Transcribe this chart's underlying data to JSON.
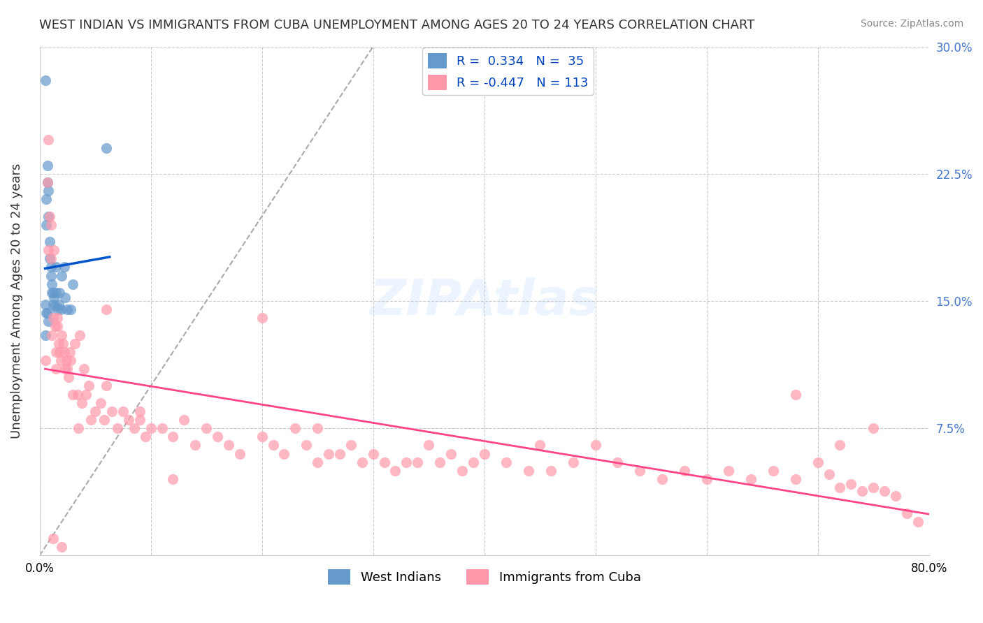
{
  "title": "WEST INDIAN VS IMMIGRANTS FROM CUBA UNEMPLOYMENT AMONG AGES 20 TO 24 YEARS CORRELATION CHART",
  "source": "Source: ZipAtlas.com",
  "ylabel": "Unemployment Among Ages 20 to 24 years",
  "xlabel": "",
  "xlim": [
    0,
    0.8
  ],
  "ylim": [
    0,
    0.3
  ],
  "xticks": [
    0.0,
    0.1,
    0.2,
    0.3,
    0.4,
    0.5,
    0.6,
    0.7,
    0.8
  ],
  "yticks": [
    0.0,
    0.075,
    0.15,
    0.225,
    0.3
  ],
  "ytick_labels": [
    "",
    "7.5%",
    "15.0%",
    "22.5%",
    "30.0%"
  ],
  "xtick_labels": [
    "0.0%",
    "",
    "",
    "",
    "",
    "",
    "",
    "",
    "80.0%"
  ],
  "legend_r1": "R =  0.334",
  "legend_n1": "N =  35",
  "legend_r2": "R = -0.447",
  "legend_n2": "N = 113",
  "blue_color": "#6699CC",
  "pink_color": "#FF99AA",
  "trend_blue": "#0055CC",
  "trend_pink": "#FF4488",
  "background": "#FFFFFF",
  "grid_color": "#CCCCCC",
  "west_indian_x": [
    0.005,
    0.005,
    0.006,
    0.006,
    0.007,
    0.007,
    0.008,
    0.008,
    0.009,
    0.009,
    0.01,
    0.01,
    0.011,
    0.011,
    0.012,
    0.012,
    0.013,
    0.014,
    0.015,
    0.015,
    0.016,
    0.017,
    0.018,
    0.019,
    0.02,
    0.022,
    0.023,
    0.025,
    0.028,
    0.03,
    0.005,
    0.006,
    0.007,
    0.008,
    0.06
  ],
  "west_indian_y": [
    0.28,
    0.13,
    0.21,
    0.195,
    0.22,
    0.23,
    0.215,
    0.2,
    0.185,
    0.175,
    0.17,
    0.165,
    0.16,
    0.155,
    0.155,
    0.148,
    0.152,
    0.147,
    0.17,
    0.155,
    0.145,
    0.148,
    0.155,
    0.145,
    0.165,
    0.17,
    0.152,
    0.145,
    0.145,
    0.16,
    0.148,
    0.143,
    0.143,
    0.138,
    0.24
  ],
  "cuba_x": [
    0.005,
    0.007,
    0.008,
    0.009,
    0.01,
    0.01,
    0.011,
    0.012,
    0.013,
    0.014,
    0.015,
    0.015,
    0.016,
    0.016,
    0.017,
    0.018,
    0.019,
    0.02,
    0.021,
    0.022,
    0.023,
    0.024,
    0.025,
    0.026,
    0.027,
    0.028,
    0.03,
    0.032,
    0.034,
    0.036,
    0.038,
    0.04,
    0.042,
    0.044,
    0.046,
    0.05,
    0.055,
    0.058,
    0.06,
    0.065,
    0.07,
    0.075,
    0.08,
    0.085,
    0.09,
    0.095,
    0.1,
    0.11,
    0.12,
    0.13,
    0.14,
    0.15,
    0.16,
    0.17,
    0.18,
    0.2,
    0.21,
    0.22,
    0.23,
    0.24,
    0.25,
    0.26,
    0.27,
    0.28,
    0.29,
    0.3,
    0.31,
    0.32,
    0.33,
    0.34,
    0.35,
    0.36,
    0.37,
    0.38,
    0.39,
    0.4,
    0.42,
    0.44,
    0.46,
    0.48,
    0.5,
    0.52,
    0.54,
    0.56,
    0.58,
    0.6,
    0.62,
    0.64,
    0.66,
    0.68,
    0.7,
    0.71,
    0.72,
    0.73,
    0.74,
    0.75,
    0.76,
    0.77,
    0.78,
    0.79,
    0.008,
    0.012,
    0.02,
    0.035,
    0.06,
    0.09,
    0.12,
    0.2,
    0.25,
    0.45,
    0.68,
    0.72,
    0.75
  ],
  "cuba_y": [
    0.115,
    0.22,
    0.18,
    0.2,
    0.175,
    0.195,
    0.13,
    0.14,
    0.18,
    0.135,
    0.12,
    0.11,
    0.14,
    0.135,
    0.125,
    0.12,
    0.115,
    0.13,
    0.125,
    0.12,
    0.11,
    0.115,
    0.11,
    0.105,
    0.12,
    0.115,
    0.095,
    0.125,
    0.095,
    0.13,
    0.09,
    0.11,
    0.095,
    0.1,
    0.08,
    0.085,
    0.09,
    0.08,
    0.1,
    0.085,
    0.075,
    0.085,
    0.08,
    0.075,
    0.08,
    0.07,
    0.075,
    0.075,
    0.07,
    0.08,
    0.065,
    0.075,
    0.07,
    0.065,
    0.06,
    0.07,
    0.065,
    0.06,
    0.075,
    0.065,
    0.055,
    0.06,
    0.06,
    0.065,
    0.055,
    0.06,
    0.055,
    0.05,
    0.055,
    0.055,
    0.065,
    0.055,
    0.06,
    0.05,
    0.055,
    0.06,
    0.055,
    0.05,
    0.05,
    0.055,
    0.065,
    0.055,
    0.05,
    0.045,
    0.05,
    0.045,
    0.05,
    0.045,
    0.05,
    0.045,
    0.055,
    0.048,
    0.04,
    0.042,
    0.038,
    0.04,
    0.038,
    0.035,
    0.025,
    0.02,
    0.245,
    0.01,
    0.005,
    0.075,
    0.145,
    0.085,
    0.045,
    0.14,
    0.075,
    0.065,
    0.095,
    0.065,
    0.075
  ]
}
